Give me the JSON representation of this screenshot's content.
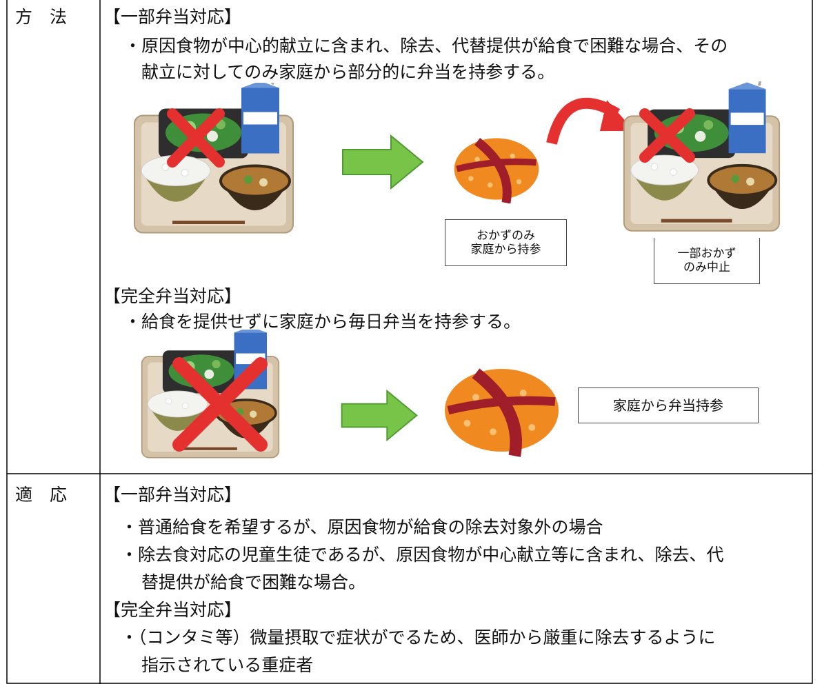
{
  "method": {
    "header": "方　法",
    "partial": {
      "heading": "【一部弁当対応】",
      "bullet_lines": [
        "・原因食物が中心的献立に含まれ、除去、代替提供が給食で困難な場合、その",
        "献立に対してのみ家庭から部分的に弁当を持参する。"
      ],
      "bring_label": [
        "おかずのみ",
        "家庭から持参"
      ],
      "stop_label": [
        "一部おかず",
        "のみ中止"
      ]
    },
    "full": {
      "heading": "【完全弁当対応】",
      "bullet_lines": [
        "・給食を提供せずに家庭から毎日弁当を持参する。"
      ],
      "bring_label": [
        "家庭から弁当持参"
      ]
    }
  },
  "application": {
    "header": "適　応",
    "partial": {
      "heading": "【一部弁当対応】",
      "bullets": [
        [
          "・普通給食を希望するが、原因食物が給食の除去対象外の場合"
        ],
        [
          "・除去食対応の児童生徒であるが、原因食物が中心献立等に含まれ、除去、代",
          "替提供が給食で困難な場合。"
        ]
      ]
    },
    "full": {
      "heading": "【完全弁当対応】",
      "bullets": [
        [
          "・（コンタミ等）微量摂取で症状がでるため、医師から厳重に除去するように",
          "指示されている重症者"
        ]
      ]
    }
  }
}
